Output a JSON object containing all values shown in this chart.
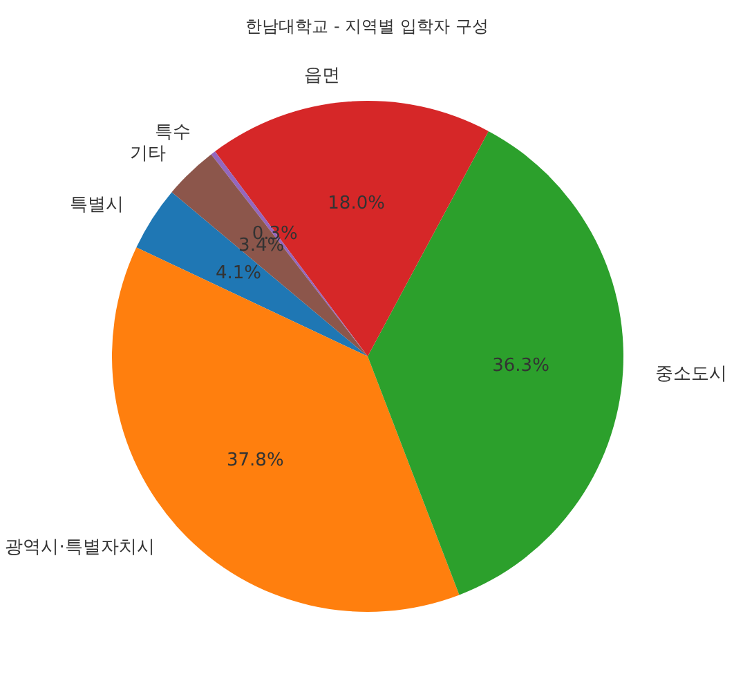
{
  "chart_data": {
    "type": "pie",
    "title": "한남대학교 - 지역별 입학자 구성",
    "categories": [
      "특별시",
      "광역시·특별자치시",
      "중소도시",
      "읍면",
      "특수",
      "기타"
    ],
    "values": [
      4.1,
      37.8,
      36.3,
      18.0,
      0.3,
      3.4
    ],
    "value_labels": [
      "4.1%",
      "37.8%",
      "36.3%",
      "18.0%",
      "0.3%",
      "3.4%"
    ],
    "colors": [
      "#1f77b4",
      "#ff7f0e",
      "#2ca02c",
      "#d62728",
      "#9467bd",
      "#8c564b"
    ]
  }
}
